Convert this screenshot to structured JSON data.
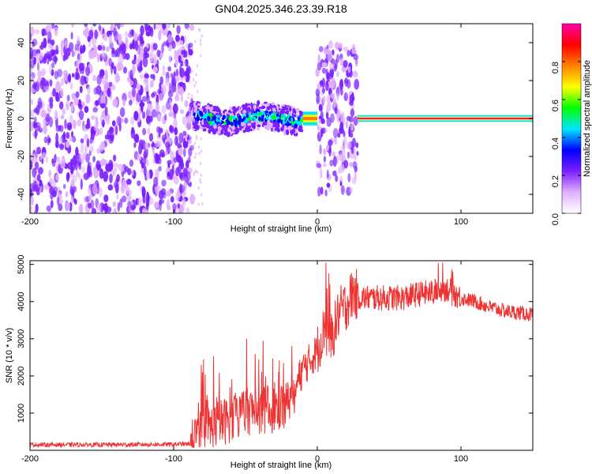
{
  "title": "GN04.2025.346.23.39.R18",
  "chart_data": [
    {
      "type": "heatmap",
      "title": "GN04.2025.346.23.39.R18",
      "xlabel": "Height of straight line (km)",
      "ylabel": "Frequency (Hz)",
      "xlim": [
        -200,
        150
      ],
      "ylim": [
        -50,
        50
      ],
      "xticks": [
        -200,
        -100,
        0,
        100
      ],
      "yticks": [
        -40,
        -20,
        0,
        20,
        40
      ],
      "colorbar": {
        "label": "Normalized spectral amplitude",
        "range": [
          0,
          1
        ],
        "ticks": [
          "0.0",
          "0.2",
          "0.4",
          "0.6",
          "0.8"
        ],
        "tick_values": [
          0,
          0.2,
          0.4,
          0.6,
          0.8
        ],
        "colors": [
          "#ffffff",
          "#e0b0ff",
          "#7b1fff",
          "#0000ff",
          "#00e5ff",
          "#00ff00",
          "#ffff00",
          "#ff8000",
          "#ff0000",
          "#ff00aa"
        ]
      },
      "regions": [
        {
          "x_range": [
            -200,
            -87
          ],
          "freq_spread": 50,
          "amplitude": 0.15,
          "description_value": "broadband noise"
        },
        {
          "x_range": [
            -87,
            -10
          ],
          "freq_spread": 7,
          "amplitude": 0.35
        },
        {
          "x_range": [
            -10,
            0
          ],
          "freq_spread": 2,
          "amplitude": 0.8
        },
        {
          "x_range": [
            0,
            28
          ],
          "freq_spread": 40,
          "amplitude": 0.15
        },
        {
          "x_range": [
            28,
            150
          ],
          "freq_spread": 1,
          "amplitude": 0.95
        }
      ]
    },
    {
      "type": "line",
      "xlabel": "Height of straight line (km)",
      "ylabel": "SNR (10 * v/v)",
      "xlim": [
        -200,
        150
      ],
      "ylim": [
        0,
        5100
      ],
      "xticks": [
        -200,
        -100,
        0,
        100
      ],
      "yticks": [
        1000,
        2000,
        3000,
        4000,
        5000
      ],
      "color": "#ee3333",
      "series": [
        {
          "name": "SNR",
          "x": [
            -200,
            -150,
            -100,
            -88,
            -80,
            -70,
            -60,
            -50,
            -40,
            -30,
            -20,
            -15,
            -10,
            -5,
            0,
            5,
            10,
            15,
            20,
            25,
            30,
            40,
            50,
            60,
            70,
            80,
            90,
            100,
            110,
            120,
            130,
            140,
            150
          ],
          "y": [
            150,
            150,
            160,
            170,
            500,
            700,
            850,
            1050,
            1050,
            1100,
            1300,
            1700,
            2200,
            2400,
            2700,
            3300,
            3000,
            3700,
            3900,
            4250,
            4100,
            4100,
            4100,
            4100,
            4200,
            4250,
            4350,
            4100,
            4000,
            3850,
            3750,
            3700,
            3650
          ]
        }
      ]
    }
  ]
}
